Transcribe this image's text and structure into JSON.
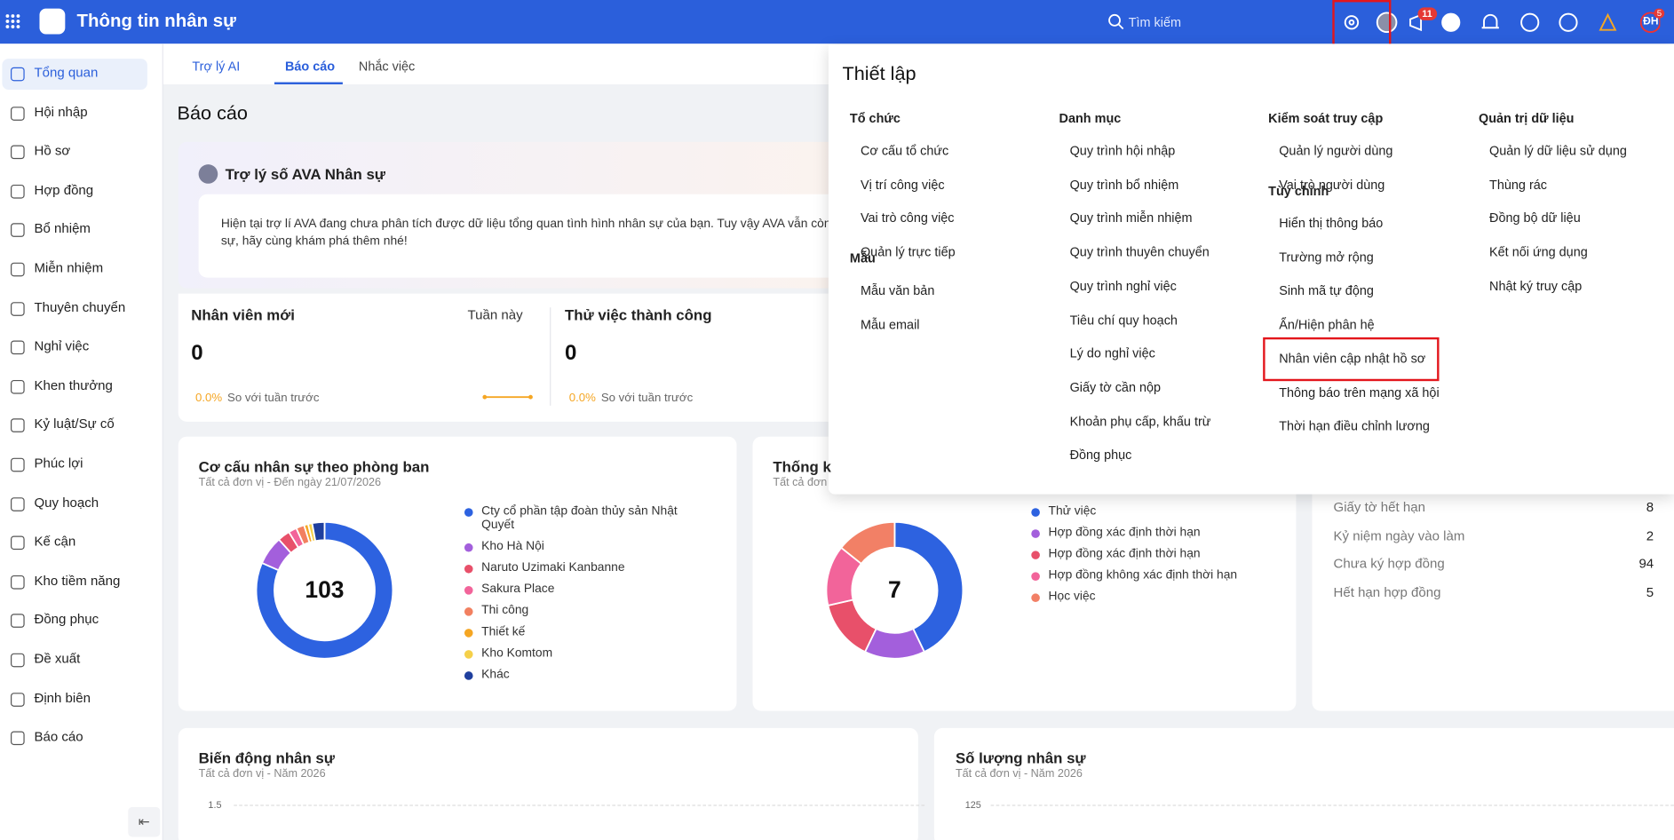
{
  "header": {
    "app_title": "Thông tin nhân sự",
    "search": "Tìm kiếm",
    "notification_badge": "11",
    "avatar": "ĐH",
    "avatar_badge": "5"
  },
  "sidebar": [
    "Tổng quan",
    "Hội nhập",
    "Hồ sơ",
    "Hợp đồng",
    "Bổ nhiệm",
    "Miễn nhiệm",
    "Thuyên chuyển",
    "Nghỉ việc",
    "Khen thưởng",
    "Kỷ luật/Sự cố",
    "Phúc lợi",
    "Quy hoạch",
    "Kế cận",
    "Kho tiềm năng",
    "Đồng phục",
    "Đề xuất",
    "Định biên",
    "Báo cáo"
  ],
  "tabs": [
    "Trợ lý AI",
    "Báo cáo",
    "Nhắc việc"
  ],
  "page_title": "Báo cáo",
  "assistant": {
    "title": "Trợ lý số AVA Nhân sự",
    "message": "Hiện tại trợ lí AVA đang chưa phân tích được dữ liệu tổng quan tình hình nhân sự của bạn. Tuy vậy AVA vẫn còn",
    "message_line2": "sự, hãy cùng khám phá thêm nhé!"
  },
  "stats": [
    {
      "title": "Nhân viên mới",
      "period": "Tuần này",
      "value": "0",
      "change": "0.0%",
      "compare": "So với tuần trước"
    },
    {
      "title": "Thử việc thành công",
      "value": "0",
      "change": "0.0%",
      "compare": "So với tuần trước"
    }
  ],
  "donuts": [
    {
      "title": "Cơ cấu nhân sự theo phòng ban",
      "subtitle": "Tất cả đơn vị - Đến ngày 21/07/2026",
      "total": "103",
      "legend": [
        "Cty cổ phần tập đoàn thủy sản Nhật Quyết",
        "Kho Hà Nội",
        "Naruto Uzimaki Kanbanne",
        "Sakura Place",
        "Thi công",
        "Thiết kế",
        "Kho Komtom",
        "Khác"
      ],
      "values": [
        84,
        7,
        3,
        2,
        2,
        1,
        1,
        3
      ],
      "colors": [
        "#2d62e0",
        "#a35fdc",
        "#e8506a",
        "#f2649a",
        "#f28060",
        "#f5a623",
        "#f5d04a",
        "#1f3f9e"
      ]
    },
    {
      "title": "Thống k",
      "subtitle": "Tất cả đơn",
      "total": "7",
      "legend": [
        "Thử việc",
        "Hợp đồng xác định thời hạn",
        "Hợp đồng xác định thời hạn",
        "Hợp đồng không xác định thời hạn",
        "Học việc"
      ],
      "values": [
        3,
        1,
        1,
        1,
        1
      ],
      "colors": [
        "#2d62e0",
        "#a35fdc",
        "#e8506a",
        "#f2649a",
        "#f28066"
      ]
    }
  ],
  "reminders": [
    {
      "label": "Giấy tờ hết hạn",
      "value": "8"
    },
    {
      "label": "Kỷ niệm ngày vào làm",
      "value": "2"
    },
    {
      "label": "Chưa ký hợp đồng",
      "value": "94"
    },
    {
      "label": "Hết hạn hợp đồng",
      "value": "5"
    }
  ],
  "bottom": [
    {
      "title": "Biến động nhân sự",
      "subtitle": "Tất cả đơn vị - Năm 2026",
      "tick": "1.5"
    },
    {
      "title": "Số lượng nhân sự",
      "subtitle": "Tất cả đơn vị - Năm 2026",
      "tick": "125"
    }
  ],
  "panel": {
    "title": "Thiết lập",
    "columns": [
      {
        "groups": [
          {
            "title": "Tổ chức",
            "items": [
              "Cơ cấu tổ chức",
              "Vị trí công việc",
              "Vai trò công việc",
              "Quản lý trực tiếp"
            ]
          },
          {
            "title": "Mẫu",
            "items": [
              "Mẫu văn bản",
              "Mẫu email"
            ]
          }
        ]
      },
      {
        "groups": [
          {
            "title": "Danh mục",
            "items": [
              "Quy trình hội nhập",
              "Quy trình bổ nhiệm",
              "Quy trình miễn nhiệm",
              "Quy trình thuyên chuyển",
              "Quy trình nghỉ việc",
              "Tiêu chí quy hoạch",
              "Lý do nghỉ việc",
              "Giấy tờ cần nộp",
              "Khoản phụ cấp, khấu trừ",
              "Đồng phục"
            ]
          }
        ]
      },
      {
        "groups": [
          {
            "title": "Kiểm soát truy cập",
            "items": [
              "Quản lý người dùng",
              "Vai trò người dùng"
            ]
          },
          {
            "title": "Tùy chỉnh",
            "items": [
              "Hiển thị thông báo",
              "Trường mở rộng",
              "Sinh mã tự động",
              "Ẩn/Hiện phân hệ",
              "Nhân viên cập nhật hồ sơ",
              "Thông báo trên mạng xã hội",
              "Thời hạn điều chỉnh lương"
            ]
          }
        ]
      },
      {
        "groups": [
          {
            "title": "Quản trị dữ liệu",
            "items": [
              "Quản lý dữ liệu sử dụng",
              "Thùng rác",
              "Đồng bộ dữ liệu",
              "Kết nối ứng dụng",
              "Nhật ký truy cập"
            ]
          }
        ]
      }
    ]
  }
}
